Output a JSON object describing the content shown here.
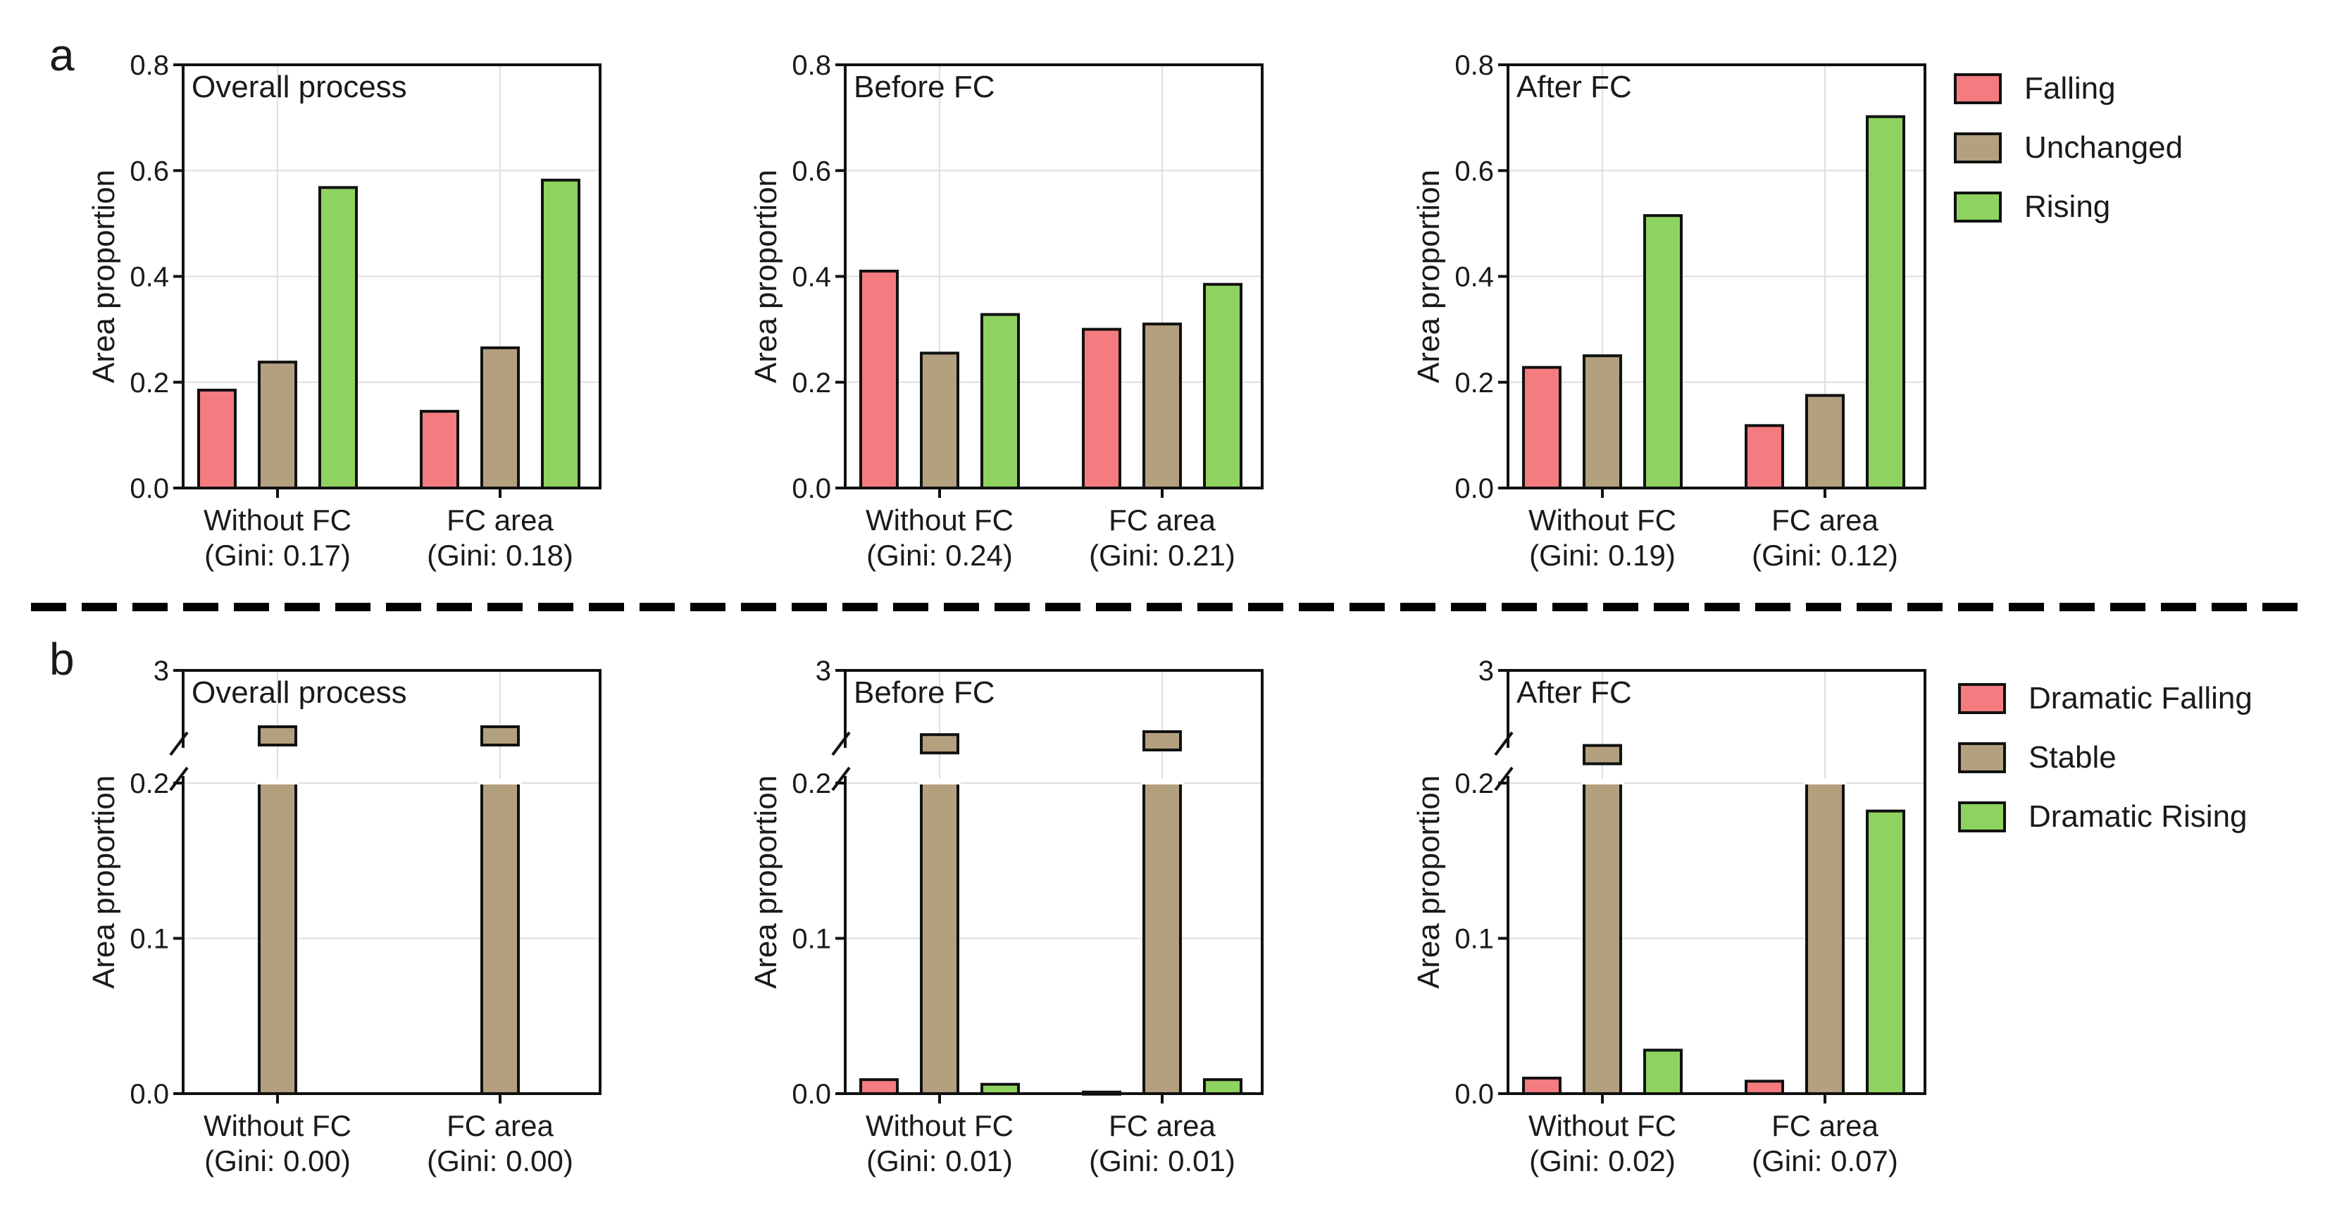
{
  "panel_labels": {
    "a": "a",
    "b": "b"
  },
  "colors": {
    "falling": "#F47B7F",
    "unchanged": "#B3A07E",
    "rising": "#8ED35F",
    "axis": "#111111",
    "grid": "#dedede"
  },
  "chart_data": [
    {
      "type": "bar",
      "row": "a",
      "title": "Overall process",
      "ylabel": "Area proportion",
      "categories": [
        "Without FC\n(Gini: 0.17)",
        "FC area\n(Gini: 0.18)"
      ],
      "ylim": [
        0,
        0.8
      ],
      "yticks": [
        "0.0",
        "0.2",
        "0.4",
        "0.6",
        "0.8"
      ],
      "series": [
        {
          "name": "Falling",
          "values": [
            0.185,
            0.145
          ]
        },
        {
          "name": "Unchanged",
          "values": [
            0.238,
            0.265
          ]
        },
        {
          "name": "Rising",
          "values": [
            0.568,
            0.582
          ]
        }
      ],
      "grid": true
    },
    {
      "type": "bar",
      "row": "a",
      "title": "Before FC",
      "ylabel": "Area proportion",
      "categories": [
        "Without FC\n(Gini: 0.24)",
        "FC area\n(Gini: 0.21)"
      ],
      "ylim": [
        0,
        0.8
      ],
      "yticks": [
        "0.0",
        "0.2",
        "0.4",
        "0.6",
        "0.8"
      ],
      "series": [
        {
          "name": "Falling",
          "values": [
            0.41,
            0.3
          ]
        },
        {
          "name": "Unchanged",
          "values": [
            0.255,
            0.31
          ]
        },
        {
          "name": "Rising",
          "values": [
            0.328,
            0.385
          ]
        }
      ],
      "grid": true
    },
    {
      "type": "bar",
      "row": "a",
      "title": "After FC",
      "ylabel": "Area proportion",
      "categories": [
        "Without FC\n(Gini: 0.19)",
        "FC area\n(Gini: 0.12)"
      ],
      "ylim": [
        0,
        0.8
      ],
      "yticks": [
        "0.0",
        "0.2",
        "0.4",
        "0.6",
        "0.8"
      ],
      "series": [
        {
          "name": "Falling",
          "values": [
            0.228,
            0.118
          ]
        },
        {
          "name": "Unchanged",
          "values": [
            0.25,
            0.175
          ]
        },
        {
          "name": "Rising",
          "values": [
            0.515,
            0.702
          ]
        }
      ],
      "grid": true
    },
    {
      "type": "bar",
      "row": "b",
      "title": "Overall process",
      "ylabel": "Area proportion",
      "categories": [
        "Without FC\n(Gini: 0.00)",
        "FC area\n(Gini: 0.00)"
      ],
      "ylim": [
        0,
        0.2
      ],
      "ylim_upper": [
        0.2,
        3
      ],
      "axis_break": true,
      "yticks": [
        "0.0",
        "0.1",
        "0.2",
        "3"
      ],
      "series": [
        {
          "name": "Dramatic Falling",
          "values": [
            0,
            0
          ]
        },
        {
          "name": "Stable",
          "values": [
            1,
            1
          ]
        },
        {
          "name": "Dramatic Rising",
          "values": [
            0,
            0
          ]
        }
      ],
      "grid": true
    },
    {
      "type": "bar",
      "row": "b",
      "title": "Before FC",
      "ylabel": "Area proportion",
      "categories": [
        "Without FC\n(Gini: 0.01)",
        "FC area\n(Gini: 0.01)"
      ],
      "ylim": [
        0,
        0.2
      ],
      "ylim_upper": [
        0.2,
        3
      ],
      "axis_break": true,
      "yticks": [
        "0.0",
        "0.1",
        "0.2",
        "3"
      ],
      "series": [
        {
          "name": "Dramatic Falling",
          "values": [
            0.009,
            0.001
          ]
        },
        {
          "name": "Stable",
          "values": [
            0.984,
            0.99
          ]
        },
        {
          "name": "Dramatic Rising",
          "values": [
            0.006,
            0.009
          ]
        }
      ],
      "grid": true
    },
    {
      "type": "bar",
      "row": "b",
      "title": "After FC",
      "ylabel": "Area proportion",
      "categories": [
        "Without FC\n(Gini: 0.02)",
        "FC area\n(Gini: 0.07)"
      ],
      "ylim": [
        0,
        0.2
      ],
      "ylim_upper": [
        0.2,
        3
      ],
      "axis_break": true,
      "yticks": [
        "0.0",
        "0.1",
        "0.2",
        "3"
      ],
      "series": [
        {
          "name": "Dramatic Falling",
          "values": [
            0.01,
            0.008
          ]
        },
        {
          "name": "Stable",
          "values": [
            0.962,
            0.81
          ]
        },
        {
          "name": "Dramatic Rising",
          "values": [
            0.028,
            0.182
          ]
        }
      ],
      "grid": true
    }
  ],
  "legends": {
    "a": [
      "Falling",
      "Unchanged",
      "Rising"
    ],
    "b": [
      "Dramatic Falling",
      "Stable",
      "Dramatic Rising"
    ]
  }
}
